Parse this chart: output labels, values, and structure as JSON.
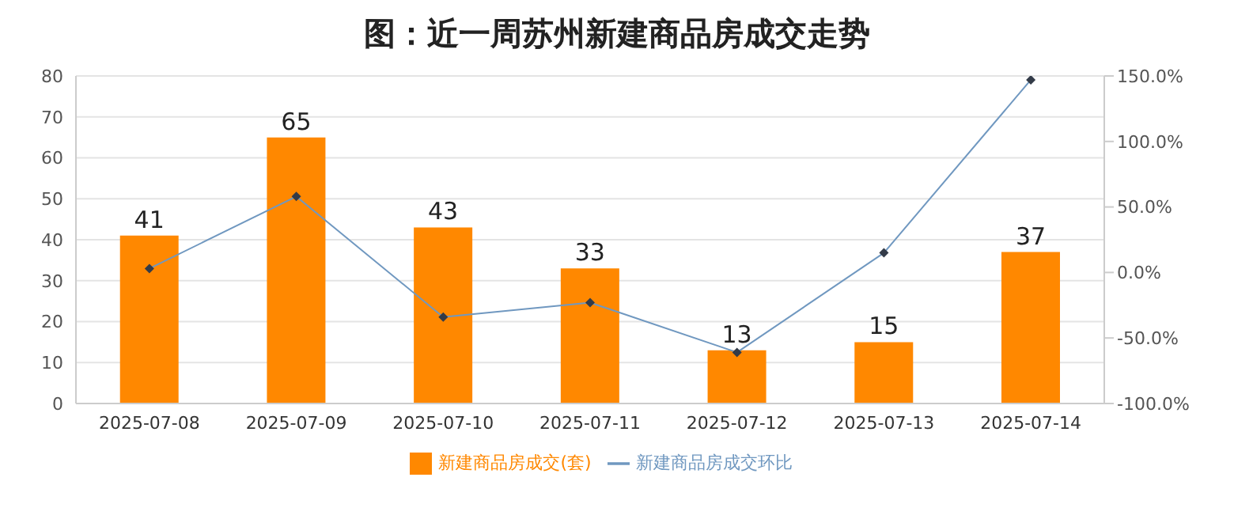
{
  "chart_data": {
    "type": "bar",
    "title": "图：近一周苏州新建商品房成交走势",
    "categories": [
      "2025-07-08",
      "2025-07-09",
      "2025-07-10",
      "2025-07-11",
      "2025-07-12",
      "2025-07-13",
      "2025-07-14"
    ],
    "series": [
      {
        "name": "新建商品房成交(套)",
        "color": "#ff8800",
        "values": [
          41,
          65,
          43,
          33,
          13,
          15,
          37
        ],
        "data_labels": true
      },
      {
        "name": "新建商品房成交环比",
        "type": "line",
        "axis": "y2",
        "color": "#7098c0",
        "values": [
          3,
          58,
          -34,
          -23,
          -61,
          15,
          147
        ],
        "marker": "diamond"
      }
    ],
    "ylim": [
      0,
      80
    ],
    "yticks": [
      0,
      10,
      20,
      30,
      40,
      50,
      60,
      70,
      80
    ],
    "y2lim": [
      -100,
      150
    ],
    "y2ticks": [
      {
        "value": -100,
        "label": "-100.0%"
      },
      {
        "value": -50,
        "label": "-50.0%"
      },
      {
        "value": 0,
        "label": "0.0%"
      },
      {
        "value": 50,
        "label": "50.0%"
      },
      {
        "value": 100,
        "label": "100.0%"
      },
      {
        "value": 150,
        "label": "150.0%"
      }
    ],
    "grid": "y",
    "legend": "bottom"
  }
}
